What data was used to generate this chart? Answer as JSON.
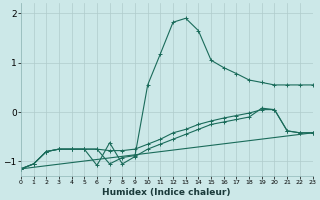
{
  "xlabel": "Humidex (Indice chaleur)",
  "bg_color": "#cce8e8",
  "line_color": "#1a6b5a",
  "grid_color": "#b0cccc",
  "xlim": [
    0,
    23
  ],
  "ylim": [
    -1.3,
    2.2
  ],
  "xticks": [
    0,
    1,
    2,
    3,
    4,
    5,
    6,
    7,
    8,
    9,
    10,
    11,
    12,
    13,
    14,
    15,
    16,
    17,
    18,
    19,
    20,
    21,
    22,
    23
  ],
  "yticks": [
    -1,
    0,
    1,
    2
  ],
  "series1_x": [
    0,
    1,
    2,
    3,
    4,
    5,
    6,
    7,
    8,
    9,
    10,
    11,
    12,
    13,
    14,
    15,
    16,
    17,
    18,
    19,
    20,
    21,
    22,
    23
  ],
  "series1_y": [
    -1.15,
    -1.05,
    -0.8,
    -0.75,
    -0.75,
    -0.75,
    -0.75,
    -1.05,
    -0.92,
    -0.88,
    0.55,
    1.18,
    1.82,
    1.9,
    1.65,
    1.05,
    0.9,
    0.78,
    0.65,
    0.6,
    0.55,
    0.55,
    0.55,
    0.55
  ],
  "series2_x": [
    0,
    1,
    2,
    3,
    4,
    5,
    6,
    7,
    8,
    9,
    10,
    11,
    12,
    13,
    14,
    15,
    16,
    17,
    18,
    19,
    20,
    21,
    22,
    23
  ],
  "series2_y": [
    -1.15,
    -1.05,
    -0.8,
    -0.75,
    -0.75,
    -0.75,
    -1.08,
    -0.62,
    -1.05,
    -0.9,
    -0.75,
    -0.65,
    -0.55,
    -0.45,
    -0.35,
    -0.25,
    -0.2,
    -0.15,
    -0.1,
    0.08,
    0.05,
    -0.38,
    -0.42,
    -0.42
  ],
  "series3_x": [
    0,
    1,
    2,
    3,
    4,
    5,
    6,
    7,
    8,
    9,
    10,
    11,
    12,
    13,
    14,
    15,
    16,
    17,
    18,
    19,
    20,
    21,
    22,
    23
  ],
  "series3_y": [
    -1.15,
    -1.05,
    -0.8,
    -0.75,
    -0.75,
    -0.75,
    -0.75,
    -0.78,
    -0.78,
    -0.75,
    -0.65,
    -0.55,
    -0.42,
    -0.35,
    -0.25,
    -0.18,
    -0.12,
    -0.07,
    -0.02,
    0.05,
    0.05,
    -0.38,
    -0.42,
    -0.42
  ],
  "series4_x": [
    0,
    23
  ],
  "series4_y": [
    -1.15,
    -0.42
  ]
}
